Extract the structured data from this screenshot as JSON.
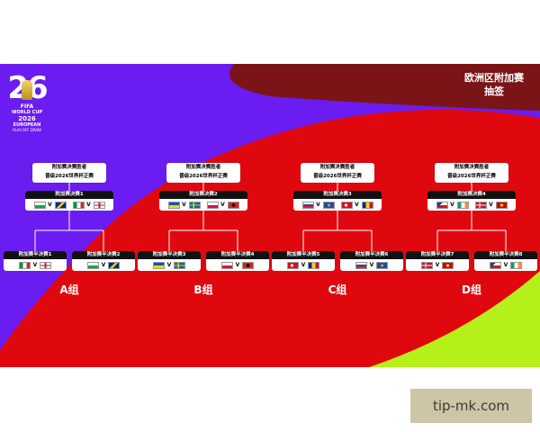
{
  "header": {
    "title_line1": "欧洲区附加赛",
    "title_line2": "抽签"
  },
  "logo": {
    "year": "26",
    "brand": "FIFA",
    "line1": "WORLD CUP",
    "line2": "2026",
    "line3": "EUROPEAN",
    "line4": "PLAY-OFF DRAW"
  },
  "winner_text": {
    "line1": "附加赛决赛胜者",
    "line2": "晋级2026世界杯正赛"
  },
  "paths": [
    {
      "group": "A组",
      "final_label": "附加赛决赛1",
      "final_flags": [
        "wales-flag",
        "bosnia-flag",
        "italy-flag",
        "northern-ireland-flag"
      ],
      "semis": [
        {
          "label": "附加赛半决赛1",
          "flags": [
            "italy-flag",
            "northern-ireland-flag"
          ]
        },
        {
          "label": "附加赛半决赛2",
          "flags": [
            "wales-flag",
            "bosnia-flag"
          ]
        }
      ]
    },
    {
      "group": "B组",
      "final_label": "附加赛决赛2",
      "final_flags": [
        "ukraine-flag",
        "sweden-flag",
        "poland-flag",
        "albania-flag"
      ],
      "semis": [
        {
          "label": "附加赛半决赛3",
          "flags": [
            "ukraine-flag",
            "sweden-flag"
          ]
        },
        {
          "label": "附加赛半决赛4",
          "flags": [
            "poland-flag",
            "albania-flag"
          ]
        }
      ]
    },
    {
      "group": "C组",
      "final_label": "附加赛决赛3",
      "final_flags": [
        "slovakia-flag",
        "kosovo-flag",
        "turkey-flag",
        "romania-flag"
      ],
      "semis": [
        {
          "label": "附加赛半决赛5",
          "flags": [
            "turkey-flag",
            "romania-flag"
          ]
        },
        {
          "label": "附加赛半决赛6",
          "flags": [
            "slovakia-flag",
            "kosovo-flag"
          ]
        }
      ]
    },
    {
      "group": "D组",
      "final_label": "附加赛决赛4",
      "final_flags": [
        "czechia-flag",
        "ireland-flag",
        "denmark-flag",
        "north-macedonia-flag"
      ],
      "semis": [
        {
          "label": "附加赛半决赛7",
          "flags": [
            "denmark-flag",
            "north-macedonia-flag"
          ]
        },
        {
          "label": "附加赛半决赛8",
          "flags": [
            "czechia-flag",
            "ireland-flag"
          ]
        }
      ]
    }
  ],
  "vs_symbol": "V",
  "colors": {
    "purple": "#6b1cf0",
    "red": "#e0080f",
    "dark_red": "#7a1416",
    "lime": "#b6f01a"
  },
  "watermark": "tip-mk.com"
}
